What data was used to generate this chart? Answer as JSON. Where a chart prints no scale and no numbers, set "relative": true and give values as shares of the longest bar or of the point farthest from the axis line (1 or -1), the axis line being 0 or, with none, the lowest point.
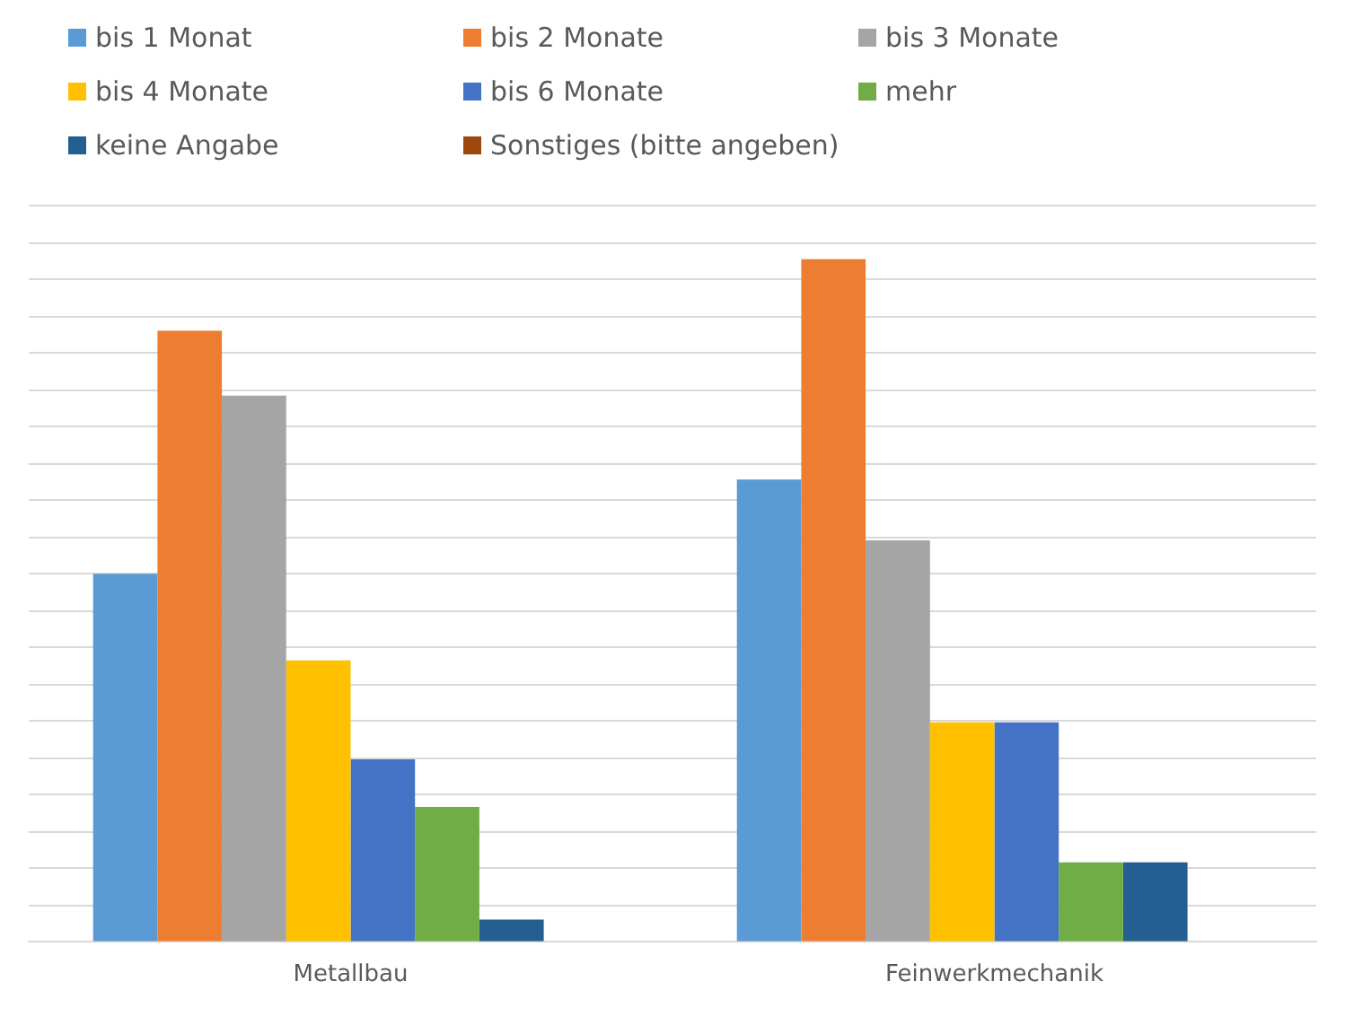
{
  "chart_data": {
    "type": "bar",
    "relative": true,
    "categories": [
      "Metallbau",
      "Feinwerkmechanik"
    ],
    "legend": "top",
    "grid": "y",
    "series": [
      {
        "name": "bis 1 Monat",
        "color": "#5b9bd5",
        "values": [
          0.539,
          0.677
        ]
      },
      {
        "name": "bis 2 Monate",
        "color": "#ed7d31",
        "values": [
          0.895,
          1
        ]
      },
      {
        "name": "bis 3 Monate",
        "color": "#a5a5a5",
        "values": [
          0.8,
          0.588
        ]
      },
      {
        "name": "bis 4 Monate",
        "color": "#ffc000",
        "values": [
          0.412,
          0.321
        ]
      },
      {
        "name": "bis 6 Monate",
        "color": "#4472c4",
        "values": [
          0.267,
          0.321
        ]
      },
      {
        "name": "mehr",
        "color": "#70ad47",
        "values": [
          0.197,
          0.116
        ]
      },
      {
        "name": "keine Angabe",
        "color": "#255e91",
        "values": [
          0.032,
          0.116
        ]
      },
      {
        "name": "Sonstiges (bitte angeben)",
        "color": "#9e480e",
        "values": [
          0,
          0
        ]
      }
    ]
  }
}
